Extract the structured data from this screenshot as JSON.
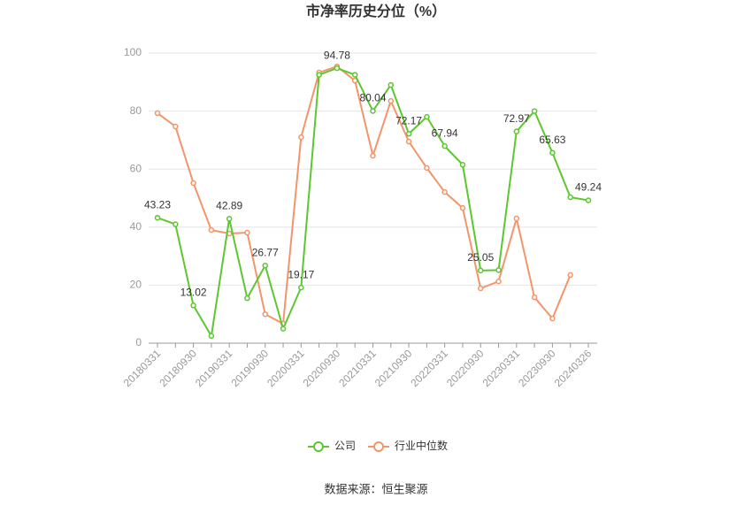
{
  "chart_data": {
    "type": "line",
    "title": "市净率历史分位（%）",
    "source": "数据来源：恒生聚源",
    "categories": [
      "20180331",
      null,
      "20180930",
      null,
      "20190331",
      null,
      "20190930",
      null,
      "20200331",
      null,
      "20200930",
      null,
      "20210331",
      null,
      "20210930",
      null,
      "20220331",
      null,
      "20220930",
      null,
      "20230331",
      null,
      "20230930",
      null,
      "20240326"
    ],
    "series": [
      {
        "name": "公司",
        "color": "#5cc72f",
        "values": [
          43.23,
          41,
          13.02,
          2.5,
          42.89,
          15.5,
          26.77,
          5,
          19.17,
          92.5,
          94.78,
          92.5,
          80.04,
          89,
          72.17,
          78,
          67.94,
          61.5,
          25.05,
          25.2,
          72.97,
          80,
          65.63,
          50.3,
          49.24
        ],
        "value_labels": [
          "43.23",
          null,
          "13.02",
          null,
          "42.89",
          null,
          "26.77",
          null,
          "19.17",
          null,
          "94.78",
          null,
          "80.04",
          null,
          "72.17",
          null,
          "67.94",
          null,
          "25.05",
          null,
          "72.97",
          null,
          "65.63",
          null,
          "49.24"
        ]
      },
      {
        "name": "行业中位数",
        "color": "#f3956a",
        "values": [
          79.3,
          74.7,
          55.2,
          39,
          37.8,
          38.1,
          10,
          6.7,
          71,
          93.3,
          95.4,
          90.5,
          64.6,
          83.5,
          69.5,
          60.4,
          52.1,
          46.6,
          18.9,
          21.3,
          43,
          15.8,
          8.5,
          23.5,
          null
        ]
      }
    ],
    "ylim": [
      0,
      100
    ],
    "yticks": [
      0,
      20,
      40,
      60,
      80,
      100
    ],
    "grid": true,
    "legend": "bottom"
  }
}
